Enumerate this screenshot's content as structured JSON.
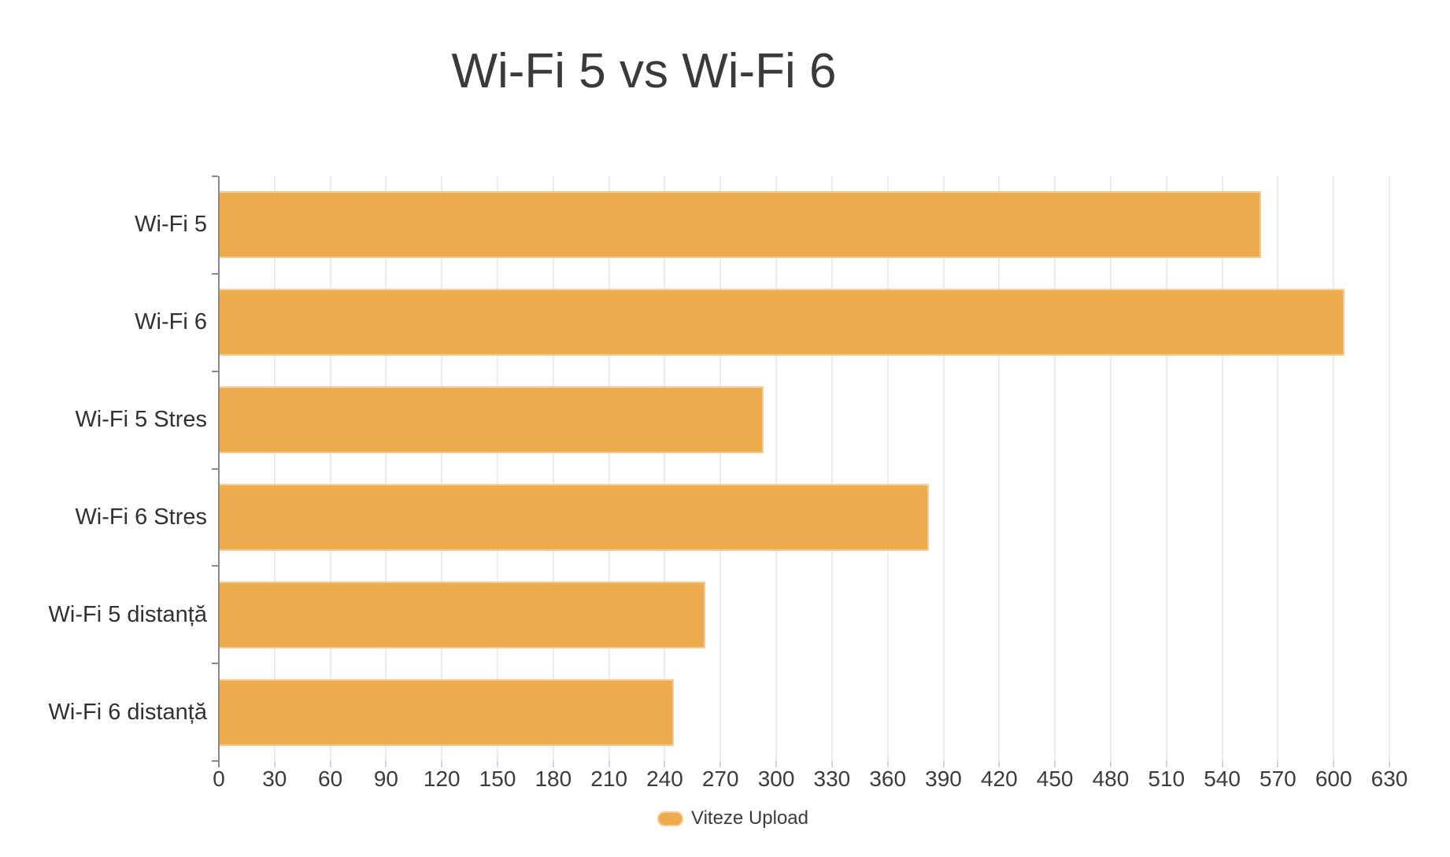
{
  "title": "Wi-Fi 5 vs Wi-Fi 6",
  "legend": {
    "label": "Viteze Upload",
    "swatch_color": "#EDAB4E",
    "position": "bottom"
  },
  "colors": {
    "bar_fill": "#EDAB4E",
    "bar_border": "#F3CD92",
    "gridline": "#ECECEC",
    "axis_line": "#878A92",
    "text": "#3A3A3A"
  },
  "chart_data": {
    "type": "bar",
    "orientation": "horizontal",
    "title": "Wi-Fi 5 vs Wi-Fi 6",
    "categories": [
      "Wi-Fi 5",
      "Wi-Fi 6",
      "Wi-Fi 5 Stres",
      "Wi-Fi 6 Stres",
      "Wi-Fi 5 distanță",
      "Wi-Fi 6 distanță"
    ],
    "series": [
      {
        "name": "Viteze Upload",
        "values": [
          561,
          606,
          293,
          382,
          262,
          245
        ]
      }
    ],
    "xlabel": "",
    "ylabel": "",
    "xlim": [
      0,
      630
    ],
    "x_tick_step": 30,
    "x_ticks": [
      0,
      30,
      60,
      90,
      120,
      150,
      180,
      210,
      240,
      270,
      300,
      330,
      360,
      390,
      420,
      450,
      480,
      510,
      540,
      570,
      600,
      630
    ],
    "grid": true,
    "legend_position": "bottom"
  }
}
